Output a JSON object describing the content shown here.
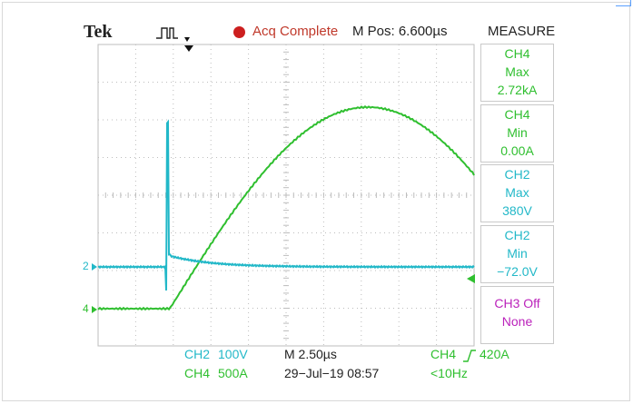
{
  "header": {
    "brand": "Tek",
    "trigger_icon": "square-pulse-icon",
    "status": "Acq Complete",
    "position": "M Pos: 6.600µs",
    "status_color": "#cc1f1f"
  },
  "measure": {
    "title": "MEASURE",
    "items": [
      {
        "line1": "CH4",
        "line2": "Max",
        "line3": "2.72kA",
        "color": "#2fbf2f"
      },
      {
        "line1": "CH4",
        "line2": "Min",
        "line3": "0.00A",
        "color": "#2fbf2f"
      },
      {
        "line1": "CH2",
        "line2": "Max",
        "line3": "380V",
        "color": "#22b8c8"
      },
      {
        "line1": "CH2",
        "line2": "Min",
        "line3": "−72.0V",
        "color": "#22b8c8"
      },
      {
        "line1": "CH3 Off",
        "line2": "None",
        "color": "#bb22bb"
      }
    ]
  },
  "channel_markers": {
    "ch2": "2",
    "ch4": "4"
  },
  "footer": {
    "ch2_scale_label": "CH2",
    "ch2_scale_value": "100V",
    "ch4_scale_label": "CH4",
    "ch4_scale_value": "500A",
    "timebase": "M 2.50µs",
    "date": "29−Jul−19 08:57",
    "trigger_source": "CH4",
    "trigger_level": "420A",
    "trigger_freq": "<10Hz"
  },
  "colors": {
    "ch2": "#22b8c8",
    "ch4": "#2fbf2f",
    "ch3": "#bb22bb",
    "grid": "#bdbdbd"
  }
}
